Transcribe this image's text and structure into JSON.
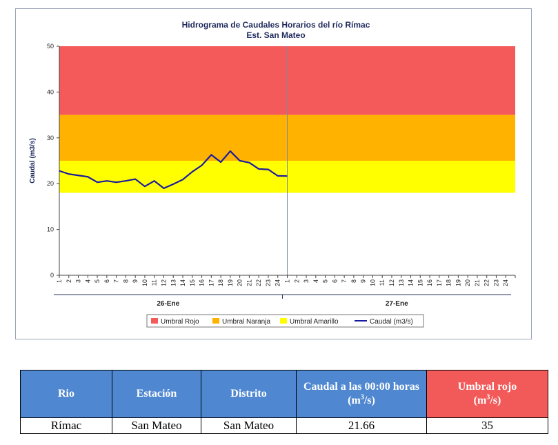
{
  "chart_data": {
    "type": "line",
    "title": "Hidrograma de Caudales Horarios del río Rímac",
    "subtitle": "Est. San Mateo",
    "ylabel": "Caudal  (m3/s)",
    "ylim": [
      0,
      50
    ],
    "yticks": [
      0,
      10,
      20,
      30,
      40,
      50
    ],
    "x_ticks": [
      "1",
      "2",
      "3",
      "4",
      "5",
      "6",
      "7",
      "8",
      "9",
      "10",
      "11",
      "12",
      "13",
      "14",
      "15",
      "16",
      "17",
      "18",
      "19",
      "20",
      "21",
      "22",
      "23",
      "24",
      "1",
      "2",
      "3",
      "4",
      "5",
      "6",
      "7",
      "8",
      "9",
      "10",
      "11",
      "12",
      "13",
      "14",
      "15",
      "16",
      "17",
      "18",
      "19",
      "20",
      "21",
      "22",
      "23",
      "24"
    ],
    "x_groups": [
      "26-Ene",
      "27-Ene"
    ],
    "bands": [
      {
        "name": "Umbral Rojo",
        "from": 35,
        "to": 50,
        "color": "#f55a5a"
      },
      {
        "name": "Umbral Naranja",
        "from": 25,
        "to": 35,
        "color": "#ffb300"
      },
      {
        "name": "Umbral Amarillo",
        "from": 18,
        "to": 25,
        "color": "#ffff00"
      }
    ],
    "series": [
      {
        "name": "Caudal (m3/s)",
        "color": "#1a1aa0",
        "x": [
          0,
          1,
          2,
          3,
          4,
          5,
          6,
          7,
          8,
          9,
          10,
          11,
          12,
          13,
          14,
          15,
          16,
          17,
          18,
          19,
          20,
          21,
          22,
          23,
          24
        ],
        "values": [
          22.8,
          22.1,
          21.8,
          21.5,
          20.3,
          20.6,
          20.3,
          20.6,
          21.0,
          19.4,
          20.6,
          19.0,
          19.9,
          20.9,
          22.6,
          24.0,
          26.3,
          24.7,
          27.1,
          25.0,
          24.6,
          23.2,
          23.1,
          21.7,
          21.66
        ]
      }
    ],
    "grid": false,
    "legend_position": "bottom"
  },
  "table": {
    "headers": [
      "Rio",
      "Estación",
      "Distrito",
      "Caudal a las 00:00 horas",
      "Umbral rojo"
    ],
    "header_unit_q": "(m",
    "header_unit_sup": "3",
    "header_unit_tail": "/s)",
    "header_red_unit_pre": "(m",
    "header_red_unit_tail": "/s)",
    "row": [
      "Rímac",
      "San Mateo",
      "San Mateo",
      "21.66",
      "35"
    ],
    "header_color": "#4f87d1",
    "header_red_color": "#f25a5a"
  }
}
